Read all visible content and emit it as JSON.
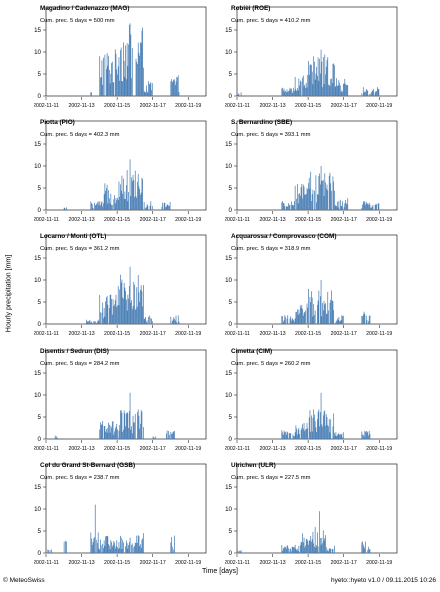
{
  "y_axis_label": "Hourly precipitation [mm]",
  "x_axis_label": "Time [days]",
  "footer": {
    "left": "© MeteoSwiss",
    "right": "hyeto::hyeto v1.0 / 09.11.2015 10:26"
  },
  "colors": {
    "bar": "#4a7fb5",
    "axis": "#000000"
  },
  "chart_data": [
    {
      "type": "bar",
      "title": "Magadino / Cadenazzo (MAG)",
      "cum_label": "Cum. prec. 5 days = 500 mm",
      "x_ticks": [
        "2002-11-11",
        "2002-11-13",
        "2002-11-15",
        "2002-11-17",
        "2002-11-19"
      ],
      "y_ticks": [
        0,
        5,
        10,
        15
      ],
      "ylim": [
        0,
        17.5
      ],
      "peak_mm": 16.5,
      "cum_prec_mm": 500,
      "rain_periods": [
        {
          "start": "2002-11-13T12:00",
          "end": "2002-11-13T14:00",
          "level": 0.8
        },
        {
          "start": "2002-11-14",
          "end": "2002-11-15",
          "level": 8
        },
        {
          "start": "2002-11-15",
          "end": "2002-11-16T12:00",
          "level": 12
        },
        {
          "start": "2002-11-16T12:00",
          "end": "2002-11-17",
          "level": 2.5
        },
        {
          "start": "2002-11-18",
          "end": "2002-11-18T12:00",
          "level": 3.5
        }
      ]
    },
    {
      "type": "bar",
      "title": "Robièi (ROE)",
      "cum_label": "Cum. prec. 5 days = 410.2 mm",
      "x_ticks": [
        "2002-11-11",
        "2002-11-13",
        "2002-11-15",
        "2002-11-17",
        "2002-11-19"
      ],
      "y_ticks": [
        0,
        5,
        10,
        15
      ],
      "ylim": [
        0,
        17.5
      ],
      "peak_mm": 10.5,
      "cum_prec_mm": 410.2,
      "rain_periods": [
        {
          "start": "2002-11-11",
          "end": "2002-11-11T06:00",
          "level": 0.8
        },
        {
          "start": "2002-11-13T12:00",
          "end": "2002-11-14T06:00",
          "level": 1.5
        },
        {
          "start": "2002-11-14T06:00",
          "end": "2002-11-15",
          "level": 4
        },
        {
          "start": "2002-11-15",
          "end": "2002-11-16T12:00",
          "level": 7
        },
        {
          "start": "2002-11-16T12:00",
          "end": "2002-11-17T06:00",
          "level": 3
        },
        {
          "start": "2002-11-18",
          "end": "2002-11-19",
          "level": 1.5
        }
      ]
    },
    {
      "type": "bar",
      "title": "Piotta (PIO)",
      "cum_label": "Cum. prec. 5 days = 402.3 mm",
      "x_ticks": [
        "2002-11-11",
        "2002-11-13",
        "2002-11-15",
        "2002-11-17",
        "2002-11-19"
      ],
      "y_ticks": [
        0,
        5,
        10,
        15
      ],
      "ylim": [
        0,
        17.5
      ],
      "peak_mm": 11.5,
      "cum_prec_mm": 402.3,
      "rain_periods": [
        {
          "start": "2002-11-12",
          "end": "2002-11-12T04:00",
          "level": 0.5
        },
        {
          "start": "2002-11-13T12:00",
          "end": "2002-11-14T06:00",
          "level": 1.5
        },
        {
          "start": "2002-11-14T06:00",
          "end": "2002-11-15",
          "level": 4.5
        },
        {
          "start": "2002-11-15",
          "end": "2002-11-16T12:00",
          "level": 7
        },
        {
          "start": "2002-11-16T12:00",
          "end": "2002-11-17",
          "level": 1.5
        },
        {
          "start": "2002-11-17T12:00",
          "end": "2002-11-18",
          "level": 1.5
        }
      ]
    },
    {
      "type": "bar",
      "title": "S. Bernardino (SBE)",
      "cum_label": "Cum. prec. 5 days = 393.1 mm",
      "x_ticks": [
        "2002-11-11",
        "2002-11-13",
        "2002-11-15",
        "2002-11-17",
        "2002-11-19"
      ],
      "y_ticks": [
        0,
        5,
        10,
        15
      ],
      "ylim": [
        0,
        17.5
      ],
      "peak_mm": 10,
      "cum_prec_mm": 393.1,
      "rain_periods": [
        {
          "start": "2002-11-13T12:00",
          "end": "2002-11-14T06:00",
          "level": 1.5
        },
        {
          "start": "2002-11-14T06:00",
          "end": "2002-11-15",
          "level": 4.5
        },
        {
          "start": "2002-11-15",
          "end": "2002-11-16T12:00",
          "level": 6.5
        },
        {
          "start": "2002-11-16T12:00",
          "end": "2002-11-17T06:00",
          "level": 2
        },
        {
          "start": "2002-11-18",
          "end": "2002-11-19",
          "level": 1.5
        }
      ]
    },
    {
      "type": "bar",
      "title": "Locarno / Monti (OTL)",
      "cum_label": "Cum. prec. 5 days = 361.2 mm",
      "x_ticks": [
        "2002-11-11",
        "2002-11-13",
        "2002-11-15",
        "2002-11-17",
        "2002-11-19"
      ],
      "y_ticks": [
        0,
        5,
        10,
        15
      ],
      "ylim": [
        0,
        17.5
      ],
      "peak_mm": 13,
      "cum_prec_mm": 361.2,
      "rain_periods": [
        {
          "start": "2002-11-13T06:00",
          "end": "2002-11-14",
          "level": 0.8
        },
        {
          "start": "2002-11-14",
          "end": "2002-11-15",
          "level": 5
        },
        {
          "start": "2002-11-15",
          "end": "2002-11-16T12:00",
          "level": 8.5
        },
        {
          "start": "2002-11-16T12:00",
          "end": "2002-11-17",
          "level": 1.5
        },
        {
          "start": "2002-11-18",
          "end": "2002-11-18T12:00",
          "level": 1.5
        }
      ]
    },
    {
      "type": "bar",
      "title": "Acquarossa / Comprovasco (COM)",
      "cum_label": "Cum. prec. 5 days = 318.9 mm",
      "x_ticks": [
        "2002-11-11",
        "2002-11-13",
        "2002-11-15",
        "2002-11-17",
        "2002-11-19"
      ],
      "y_ticks": [
        0,
        5,
        10,
        15
      ],
      "ylim": [
        0,
        17.5
      ],
      "peak_mm": 10,
      "cum_prec_mm": 318.9,
      "rain_periods": [
        {
          "start": "2002-11-13T12:00",
          "end": "2002-11-14T06:00",
          "level": 1.5
        },
        {
          "start": "2002-11-14T06:00",
          "end": "2002-11-15",
          "level": 4
        },
        {
          "start": "2002-11-15",
          "end": "2002-11-16T12:00",
          "level": 6
        },
        {
          "start": "2002-11-16T12:00",
          "end": "2002-11-17",
          "level": 1.5
        },
        {
          "start": "2002-11-18",
          "end": "2002-11-18T12:00",
          "level": 2.5
        }
      ]
    },
    {
      "type": "bar",
      "title": "Disentis / Sedrun (DIS)",
      "cum_label": "Cum. prec. 5 days = 284.2 mm",
      "x_ticks": [
        "2002-11-11",
        "2002-11-13",
        "2002-11-15",
        "2002-11-17",
        "2002-11-19"
      ],
      "y_ticks": [
        0,
        5,
        10,
        15
      ],
      "ylim": [
        0,
        17.5
      ],
      "peak_mm": 10.5,
      "cum_prec_mm": 284.2,
      "rain_periods": [
        {
          "start": "2002-11-11T12:00",
          "end": "2002-11-11T16:00",
          "level": 0.6
        },
        {
          "start": "2002-11-14",
          "end": "2002-11-15",
          "level": 3.5
        },
        {
          "start": "2002-11-15",
          "end": "2002-11-16T12:00",
          "level": 5
        },
        {
          "start": "2002-11-17",
          "end": "2002-11-17T04:00",
          "level": 0.6
        },
        {
          "start": "2002-11-17T18:00",
          "end": "2002-11-18T06:00",
          "level": 1.5
        }
      ]
    },
    {
      "type": "bar",
      "title": "Cimetta (CIM)",
      "cum_label": "Cum. prec. 5 days = 260.2 mm",
      "x_ticks": [
        "2002-11-11",
        "2002-11-13",
        "2002-11-15",
        "2002-11-17",
        "2002-11-19"
      ],
      "y_ticks": [
        0,
        5,
        10,
        15
      ],
      "ylim": [
        0,
        17.5
      ],
      "peak_mm": 10.5,
      "cum_prec_mm": 260.2,
      "rain_periods": [
        {
          "start": "2002-11-13T12:00",
          "end": "2002-11-14T06:00",
          "level": 1.5
        },
        {
          "start": "2002-11-14T06:00",
          "end": "2002-11-15",
          "level": 3
        },
        {
          "start": "2002-11-15",
          "end": "2002-11-16T12:00",
          "level": 5
        },
        {
          "start": "2002-11-16T12:00",
          "end": "2002-11-17",
          "level": 1.2
        },
        {
          "start": "2002-11-18",
          "end": "2002-11-18T12:00",
          "level": 1.5
        }
      ]
    },
    {
      "type": "bar",
      "title": "Col du Grand St-Bernard (GSB)",
      "cum_label": "Cum. prec. 5 days = 238.7 mm",
      "x_ticks": [
        "2002-11-11",
        "2002-11-13",
        "2002-11-15",
        "2002-11-17",
        "2002-11-19"
      ],
      "y_ticks": [
        0,
        5,
        10,
        15
      ],
      "ylim": [
        0,
        17.5
      ],
      "peak_mm": 11,
      "cum_prec_mm": 238.7,
      "rain_periods": [
        {
          "start": "2002-11-11",
          "end": "2002-11-11T08:00",
          "level": 0.6
        },
        {
          "start": "2002-11-12",
          "end": "2002-11-12T04:00",
          "level": 3
        },
        {
          "start": "2002-11-13T12:00",
          "end": "2002-11-14",
          "level": 3.5
        },
        {
          "start": "2002-11-14",
          "end": "2002-11-14T12:00",
          "level": 3
        },
        {
          "start": "2002-11-14T12:00",
          "end": "2002-11-15",
          "level": 2.5
        },
        {
          "start": "2002-11-15",
          "end": "2002-11-15T18:00",
          "level": 3
        },
        {
          "start": "2002-11-15T18:00",
          "end": "2002-11-16T12:00",
          "level": 3.5
        },
        {
          "start": "2002-11-18",
          "end": "2002-11-18T06:00",
          "level": 3
        }
      ]
    },
    {
      "type": "bar",
      "title": "Ulrichen (ULR)",
      "cum_label": "Cum. prec. 5 days = 227.5 mm",
      "x_ticks": [
        "2002-11-11",
        "2002-11-13",
        "2002-11-15",
        "2002-11-17",
        "2002-11-19"
      ],
      "y_ticks": [
        0,
        5,
        10,
        15
      ],
      "ylim": [
        0,
        17.5
      ],
      "peak_mm": 9.5,
      "cum_prec_mm": 227.5,
      "rain_periods": [
        {
          "start": "2002-11-11",
          "end": "2002-11-11T06:00",
          "level": 0.6
        },
        {
          "start": "2002-11-13T12:00",
          "end": "2002-11-14T12:00",
          "level": 1.5
        },
        {
          "start": "2002-11-14T12:00",
          "end": "2002-11-15T06:00",
          "level": 3.5
        },
        {
          "start": "2002-11-15T06:00",
          "end": "2002-11-16",
          "level": 4.5
        },
        {
          "start": "2002-11-16",
          "end": "2002-11-16T12:00",
          "level": 1.5
        },
        {
          "start": "2002-11-18",
          "end": "2002-11-18T12:00",
          "level": 2
        }
      ]
    }
  ]
}
